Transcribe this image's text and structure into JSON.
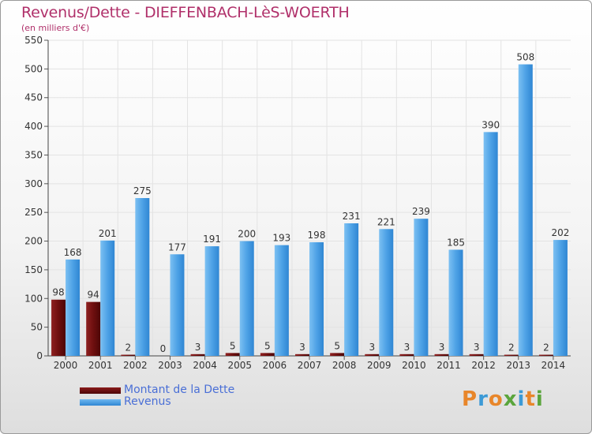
{
  "title": "Revenus/Dette - DIEFFENBACH-LèS-WOERTH",
  "subtitle": "(en milliers d'€)",
  "logo": {
    "text": "Proxiti",
    "colors": [
      "#e8862a",
      "#3c9ad6",
      "#e8862a",
      "#5aa53c",
      "#3c9ad6",
      "#e8862a",
      "#5aa53c"
    ]
  },
  "chart_data": {
    "type": "bar",
    "categories": [
      "2000",
      "2001",
      "2002",
      "2003",
      "2004",
      "2005",
      "2006",
      "2007",
      "2008",
      "2009",
      "2010",
      "2011",
      "2012",
      "2013",
      "2014"
    ],
    "series": [
      {
        "name": "Montant de la Dette",
        "color": "#6e0f0f",
        "values": [
          98,
          94,
          2,
          0,
          3,
          5,
          5,
          3,
          5,
          3,
          3,
          3,
          3,
          2,
          2
        ]
      },
      {
        "name": "Revenus",
        "color": "#3c9ae4",
        "values": [
          168,
          201,
          275,
          177,
          191,
          200,
          193,
          198,
          231,
          221,
          239,
          185,
          390,
          508,
          202
        ]
      }
    ],
    "yticks": [
      0,
      50,
      100,
      150,
      200,
      250,
      300,
      350,
      400,
      450,
      500,
      550
    ],
    "ylim": [
      0,
      550
    ],
    "grid": true,
    "legend": "bottom-left"
  }
}
